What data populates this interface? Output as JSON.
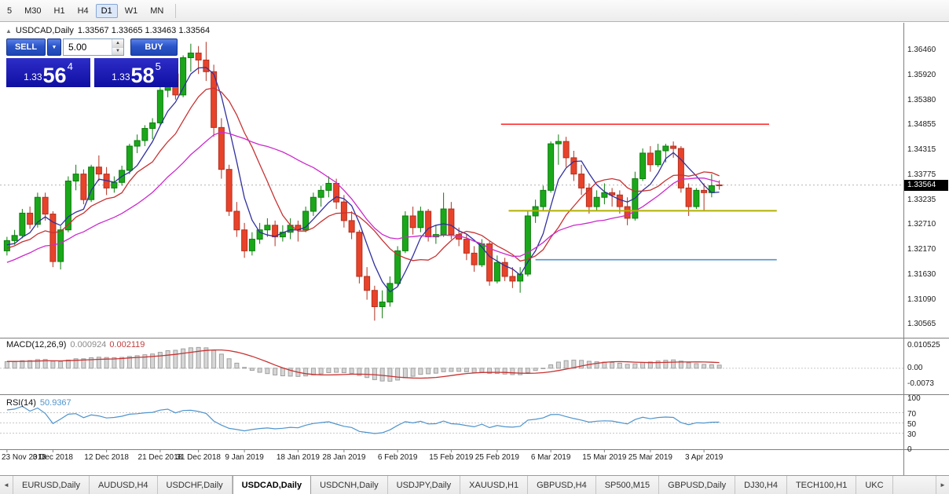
{
  "toolbar": {
    "timeframes": [
      {
        "label": "5",
        "active": false
      },
      {
        "label": "M30",
        "active": false
      },
      {
        "label": "H1",
        "active": false
      },
      {
        "label": "H4",
        "active": false
      },
      {
        "label": "D1",
        "active": true
      },
      {
        "label": "W1",
        "active": false
      },
      {
        "label": "MN",
        "active": false
      }
    ]
  },
  "chart": {
    "symbol": "USDCAD,Daily",
    "ohlc_text": "1.33567 1.33665 1.33463 1.33564"
  },
  "icons": {
    "collapse_icon": "▲",
    "dropdown_icon": "▼",
    "spin_up_icon": "▲",
    "spin_down_icon": "▼",
    "tab_left_icon": "◄",
    "tab_right_icon": "►"
  },
  "trade_panel": {
    "sell_label": "SELL",
    "buy_label": "BUY",
    "volume": "5.00",
    "bid": {
      "prefix": "1.33",
      "big": "56",
      "sup": "4"
    },
    "ask": {
      "prefix": "1.33",
      "big": "58",
      "sup": "5"
    }
  },
  "macd": {
    "label": "MACD(12,26,9)",
    "main_value": "0.000924",
    "signal_value": "0.002119",
    "fast": 12,
    "slow": 26,
    "signal": 9,
    "axis_labels": [
      "0.010525",
      "0.00",
      "-0.0073"
    ],
    "range": {
      "top": 0.0136,
      "bottom": -0.0115
    }
  },
  "rsi": {
    "label": "RSI(14)",
    "value": "50.9367",
    "period": 14,
    "axis_labels": [
      "100",
      "70",
      "50",
      "30",
      "0"
    ],
    "levels": [
      70,
      50,
      30
    ]
  },
  "tabs": {
    "items": [
      {
        "label": "EURUSD,Daily",
        "active": false
      },
      {
        "label": "AUDUSD,H4",
        "active": false
      },
      {
        "label": "USDCHF,Daily",
        "active": false
      },
      {
        "label": "USDCAD,Daily",
        "active": true
      },
      {
        "label": "USDCNH,Daily",
        "active": false
      },
      {
        "label": "USDJPY,Daily",
        "active": false
      },
      {
        "label": "XAUUSD,H1",
        "active": false
      },
      {
        "label": "GBPUSD,H4",
        "active": false
      },
      {
        "label": "SP500,M15",
        "active": false
      },
      {
        "label": "GBPUSD,Daily",
        "active": false
      },
      {
        "label": "DJ30,H4",
        "active": false
      },
      {
        "label": "TECH100,H1",
        "active": false
      },
      {
        "label": "UKC",
        "active": false
      }
    ]
  },
  "colors": {
    "candle_up": "#1aa81a",
    "candle_up_border": "#0c7c0c",
    "candle_down": "#e8432a",
    "candle_down_border": "#b23020",
    "macd_bar": "#d6d6d6",
    "macd_bar_border": "#a0a0a0",
    "macd_signal": "#c83232",
    "rsi_line": "#4f94cd",
    "level_dash": "#c8c8c8",
    "separator": "#808080",
    "bid_line": "#b4b4b4",
    "badge_bg": "#000000",
    "badge_text": "#ffffff",
    "panel_blue": "#1212b0",
    "button_blue": "#2b55c8",
    "resistance_red": "#ff3232",
    "support_olive": "#b1b100",
    "support_blue": "#4f94cd"
  },
  "chart_data": {
    "type": "candlestick",
    "symbol": "USDCAD",
    "timeframe": "Daily",
    "price_range": {
      "top": 1.37,
      "bottom": 1.303
    },
    "current_price": "1.33564",
    "price_axis_labels": [
      "1.36460",
      "1.35920",
      "1.35380",
      "1.34855",
      "1.34315",
      "1.33775",
      "1.33235",
      "1.32710",
      "1.32170",
      "1.31630",
      "1.31090",
      "1.30565"
    ],
    "date_labels": [
      {
        "label": "23 Nov 2018",
        "index": 0
      },
      {
        "label": "3 Dec 2018",
        "index": 6
      },
      {
        "label": "12 Dec 2018",
        "index": 13
      },
      {
        "label": "21 Dec 2018",
        "index": 20
      },
      {
        "label": "31 Dec 2018",
        "index": 25
      },
      {
        "label": "9 Jan 2019",
        "index": 31
      },
      {
        "label": "18 Jan 2019",
        "index": 38
      },
      {
        "label": "28 Jan 2019",
        "index": 44
      },
      {
        "label": "6 Feb 2019",
        "index": 51
      },
      {
        "label": "15 Feb 2019",
        "index": 58
      },
      {
        "label": "25 Feb 2019",
        "index": 64
      },
      {
        "label": "6 Mar 2019",
        "index": 71
      },
      {
        "label": "15 Mar 2019",
        "index": 78
      },
      {
        "label": "25 Mar 2019",
        "index": 84
      },
      {
        "label": "3 Apr 2019",
        "index": 91
      }
    ],
    "moving_averages": [
      {
        "type": "sma",
        "period": 5,
        "color": "#3030a0"
      },
      {
        "type": "sma",
        "period": 10,
        "color": "#c83232"
      },
      {
        "type": "sma",
        "period": 21,
        "color": "#cc29cc"
      }
    ],
    "hlines": [
      {
        "price": 1.3487,
        "from_index": 64.5,
        "to_index": 99.5,
        "color": "#ff3232",
        "width": 1.6
      },
      {
        "price": 1.3301,
        "from_index": 65.5,
        "to_index": 100.5,
        "color": "#b1b100",
        "width": 2
      },
      {
        "price": 1.3196,
        "from_index": 69,
        "to_index": 100.5,
        "color": "#4f94cd",
        "width": 1.6
      }
    ],
    "warmup_closes": [
      1.3085,
      1.3092,
      1.3108,
      1.31,
      1.3122,
      1.3135,
      1.3128,
      1.315,
      1.3163,
      1.3155,
      1.3172,
      1.3185,
      1.3178,
      1.3196,
      1.3205,
      1.3196,
      1.321,
      1.3222,
      1.3212,
      1.3226,
      1.3235,
      1.3228,
      1.3222,
      1.3218
    ],
    "ohlc": [
      [
        1.3215,
        1.3245,
        1.3205,
        1.3237
      ],
      [
        1.3237,
        1.326,
        1.3228,
        1.3248
      ],
      [
        1.3248,
        1.3305,
        1.3242,
        1.3296
      ],
      [
        1.3296,
        1.331,
        1.3262,
        1.3272
      ],
      [
        1.3272,
        1.334,
        1.3265,
        1.333
      ],
      [
        1.333,
        1.334,
        1.328,
        1.3294
      ],
      [
        1.3294,
        1.33,
        1.318,
        1.3192
      ],
      [
        1.3192,
        1.3268,
        1.3175,
        1.326
      ],
      [
        1.326,
        1.3375,
        1.3255,
        1.3365
      ],
      [
        1.3365,
        1.34,
        1.3345,
        1.338
      ],
      [
        1.338,
        1.339,
        1.3315,
        1.3325
      ],
      [
        1.3325,
        1.34,
        1.332,
        1.3395
      ],
      [
        1.3395,
        1.342,
        1.3365,
        1.338
      ],
      [
        1.338,
        1.3395,
        1.3335,
        1.335
      ],
      [
        1.335,
        1.3375,
        1.334,
        1.3362
      ],
      [
        1.3362,
        1.3398,
        1.3355,
        1.3388
      ],
      [
        1.3388,
        1.3445,
        1.338,
        1.344
      ],
      [
        1.344,
        1.3465,
        1.3425,
        1.3452
      ],
      [
        1.3452,
        1.3485,
        1.344,
        1.3478
      ],
      [
        1.3478,
        1.35,
        1.3455,
        1.349
      ],
      [
        1.349,
        1.357,
        1.3485,
        1.356
      ],
      [
        1.356,
        1.3605,
        1.3545,
        1.3595
      ],
      [
        1.3595,
        1.36,
        1.354,
        1.355
      ],
      [
        1.355,
        1.3635,
        1.3545,
        1.363
      ],
      [
        1.363,
        1.366,
        1.36,
        1.364
      ],
      [
        1.364,
        1.3655,
        1.3595,
        1.3625
      ],
      [
        1.3625,
        1.3664,
        1.358,
        1.36
      ],
      [
        1.36,
        1.3615,
        1.346,
        1.348
      ],
      [
        1.348,
        1.35,
        1.337,
        1.339
      ],
      [
        1.339,
        1.34,
        1.329,
        1.33
      ],
      [
        1.33,
        1.332,
        1.3245,
        1.326
      ],
      [
        1.326,
        1.3275,
        1.32,
        1.3215
      ],
      [
        1.3215,
        1.3255,
        1.3205,
        1.324
      ],
      [
        1.324,
        1.3275,
        1.323,
        1.326
      ],
      [
        1.326,
        1.3285,
        1.3245,
        1.327
      ],
      [
        1.327,
        1.328,
        1.3225,
        1.3245
      ],
      [
        1.3245,
        1.327,
        1.3235,
        1.3255
      ],
      [
        1.3255,
        1.3285,
        1.324,
        1.327
      ],
      [
        1.327,
        1.328,
        1.3235,
        1.326
      ],
      [
        1.326,
        1.331,
        1.3255,
        1.33
      ],
      [
        1.33,
        1.334,
        1.329,
        1.333
      ],
      [
        1.333,
        1.3355,
        1.331,
        1.3345
      ],
      [
        1.3345,
        1.3375,
        1.333,
        1.336
      ],
      [
        1.336,
        1.337,
        1.3305,
        1.332
      ],
      [
        1.332,
        1.3335,
        1.3265,
        1.328
      ],
      [
        1.328,
        1.33,
        1.324,
        1.3255
      ],
      [
        1.3255,
        1.326,
        1.3145,
        1.316
      ],
      [
        1.316,
        1.318,
        1.311,
        1.313
      ],
      [
        1.313,
        1.314,
        1.3065,
        1.3095
      ],
      [
        1.3095,
        1.313,
        1.307,
        1.3105
      ],
      [
        1.3105,
        1.316,
        1.3095,
        1.3145
      ],
      [
        1.3145,
        1.3225,
        1.314,
        1.3215
      ],
      [
        1.3215,
        1.33,
        1.321,
        1.329
      ],
      [
        1.329,
        1.331,
        1.325,
        1.3265
      ],
      [
        1.3265,
        1.331,
        1.3255,
        1.33
      ],
      [
        1.33,
        1.3305,
        1.3235,
        1.3245
      ],
      [
        1.3245,
        1.327,
        1.323,
        1.325
      ],
      [
        1.325,
        1.334,
        1.3245,
        1.3305
      ],
      [
        1.3305,
        1.332,
        1.324,
        1.325
      ],
      [
        1.325,
        1.3265,
        1.3225,
        1.324
      ],
      [
        1.324,
        1.325,
        1.3195,
        1.321
      ],
      [
        1.321,
        1.3225,
        1.317,
        1.3185
      ],
      [
        1.3185,
        1.324,
        1.318,
        1.323
      ],
      [
        1.323,
        1.3235,
        1.314,
        1.315
      ],
      [
        1.315,
        1.3205,
        1.3145,
        1.319
      ],
      [
        1.319,
        1.32,
        1.315,
        1.316
      ],
      [
        1.316,
        1.318,
        1.3135,
        1.315
      ],
      [
        1.315,
        1.318,
        1.3125,
        1.3165
      ],
      [
        1.3165,
        1.33,
        1.316,
        1.329
      ],
      [
        1.329,
        1.3325,
        1.3275,
        1.331
      ],
      [
        1.331,
        1.3355,
        1.33,
        1.3345
      ],
      [
        1.3345,
        1.345,
        1.334,
        1.3445
      ],
      [
        1.3445,
        1.3465,
        1.34,
        1.345
      ],
      [
        1.345,
        1.346,
        1.3395,
        1.3415
      ],
      [
        1.3415,
        1.343,
        1.3365,
        1.338
      ],
      [
        1.338,
        1.34,
        1.3335,
        1.335
      ],
      [
        1.335,
        1.336,
        1.3295,
        1.331
      ],
      [
        1.331,
        1.3345,
        1.33,
        1.333
      ],
      [
        1.333,
        1.336,
        1.3315,
        1.334
      ],
      [
        1.334,
        1.335,
        1.331,
        1.3335
      ],
      [
        1.3335,
        1.3345,
        1.3295,
        1.331
      ],
      [
        1.331,
        1.333,
        1.327,
        1.3285
      ],
      [
        1.3285,
        1.3385,
        1.328,
        1.337
      ],
      [
        1.337,
        1.3435,
        1.3365,
        1.3425
      ],
      [
        1.3425,
        1.344,
        1.3385,
        1.34
      ],
      [
        1.34,
        1.3445,
        1.3395,
        1.343
      ],
      [
        1.343,
        1.3445,
        1.3405,
        1.344
      ],
      [
        1.344,
        1.345,
        1.3415,
        1.3435
      ],
      [
        1.3435,
        1.344,
        1.334,
        1.335
      ],
      [
        1.335,
        1.336,
        1.329,
        1.331
      ],
      [
        1.331,
        1.335,
        1.3305,
        1.3345
      ],
      [
        1.3345,
        1.336,
        1.33,
        1.334
      ],
      [
        1.334,
        1.338,
        1.333,
        1.3355
      ],
      [
        1.33567,
        1.33665,
        1.33463,
        1.33564
      ]
    ]
  }
}
